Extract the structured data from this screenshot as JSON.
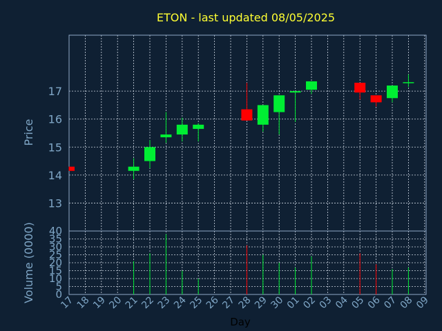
{
  "title": "ETON - last updated 08/05/2025",
  "colors": {
    "background": "#0f2033",
    "title": "#ffff33",
    "axis_text": "#7fa6c6",
    "up": "#00ee33",
    "down": "#ff0000",
    "grid": "#cfd8e3"
  },
  "chart_data": {
    "type": "candlestick",
    "title": "ETON - last updated 08/05/2025",
    "xlabel": "Day",
    "price_axis": {
      "label": "Price",
      "ticks": [
        13,
        14,
        15,
        16,
        17
      ],
      "range": [
        12,
        19
      ]
    },
    "volume_axis": {
      "label": "Volume (0000)",
      "ticks": [
        0,
        5,
        10,
        15,
        20,
        25,
        30,
        35,
        40
      ],
      "range": [
        0,
        40
      ]
    },
    "day_ticks": [
      "17",
      "18",
      "19",
      "20",
      "21",
      "22",
      "23",
      "24",
      "25",
      "26",
      "27",
      "28",
      "29",
      "30",
      "01",
      "02",
      "03",
      "04",
      "05",
      "06",
      "07",
      "08",
      "09"
    ],
    "grid": true,
    "candles": [
      {
        "day": "17",
        "open": 14.3,
        "close": 14.15,
        "high": 14.3,
        "low": 14.15,
        "volume": 0
      },
      {
        "day": "21",
        "open": 14.15,
        "close": 14.3,
        "high": 14.6,
        "low": 13.85,
        "volume": 21
      },
      {
        "day": "22",
        "open": 14.5,
        "close": 15.0,
        "high": 15.25,
        "low": 14.25,
        "volume": 26
      },
      {
        "day": "23",
        "open": 15.35,
        "close": 15.45,
        "high": 16.25,
        "low": 15.15,
        "volume": 38
      },
      {
        "day": "24",
        "open": 15.45,
        "close": 15.8,
        "high": 16.05,
        "low": 15.2,
        "volume": 15
      },
      {
        "day": "25",
        "open": 15.65,
        "close": 15.8,
        "high": 15.85,
        "low": 15.2,
        "volume": 10
      },
      {
        "day": "28",
        "open": 16.35,
        "close": 15.95,
        "high": 17.3,
        "low": 15.95,
        "volume": 31
      },
      {
        "day": "29",
        "open": 15.8,
        "close": 16.5,
        "high": 16.5,
        "low": 15.55,
        "volume": 25
      },
      {
        "day": "30",
        "open": 16.25,
        "close": 16.85,
        "high": 16.85,
        "low": 15.45,
        "volume": 20
      },
      {
        "day": "01",
        "open": 16.95,
        "close": 17.0,
        "high": 17.0,
        "low": 15.9,
        "volume": 17
      },
      {
        "day": "02",
        "open": 17.05,
        "close": 17.35,
        "high": 17.35,
        "low": 16.9,
        "volume": 24
      },
      {
        "day": "05",
        "open": 17.3,
        "close": 16.95,
        "high": 17.3,
        "low": 16.7,
        "volume": 26
      },
      {
        "day": "06",
        "open": 16.85,
        "close": 16.6,
        "high": 16.85,
        "low": 16.45,
        "volume": 19
      },
      {
        "day": "07",
        "open": 16.75,
        "close": 17.2,
        "high": 17.2,
        "low": 16.6,
        "volume": 16
      },
      {
        "day": "08",
        "open": 17.3,
        "close": 17.32,
        "high": 17.6,
        "low": 17.15,
        "volume": 17
      }
    ]
  }
}
